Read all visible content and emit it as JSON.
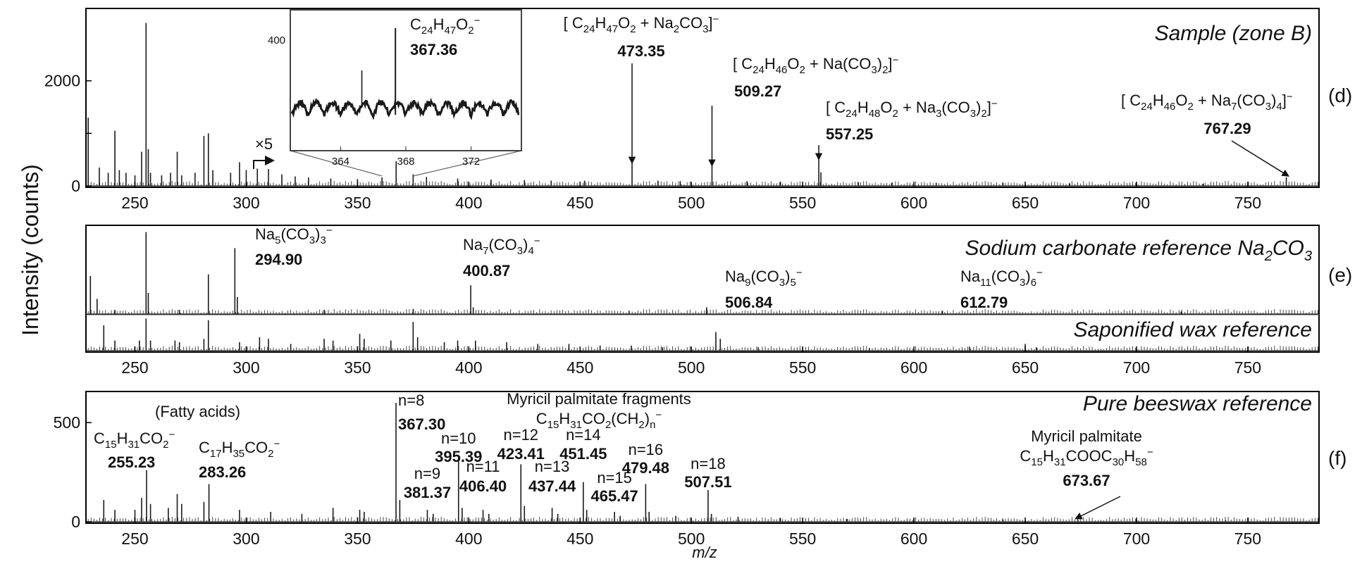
{
  "figure": {
    "ylabel": "Intensity (counts)",
    "xlabel": "m/z",
    "colors": {
      "spectrum": "#1a1a1a",
      "axis": "#000000",
      "inset_bg": "#ffffff"
    }
  },
  "chart_data": [
    {
      "id": "d",
      "type": "line",
      "panel_label": "(d)",
      "title": "Sample (zone B)",
      "xlim": [
        228,
        782
      ],
      "ylim": [
        0,
        3350
      ],
      "xticks": [
        250,
        300,
        350,
        400,
        450,
        500,
        550,
        600,
        650,
        700,
        750
      ],
      "yticks": [
        0,
        1000,
        2000
      ],
      "ytick_labels": [
        "0",
        "",
        "2000"
      ],
      "magnification_note": "×5",
      "magnification_from_x": 300,
      "peaks": [
        {
          "x": 229,
          "y": 1300
        },
        {
          "x": 234,
          "y": 350
        },
        {
          "x": 238,
          "y": 250
        },
        {
          "x": 241,
          "y": 1050
        },
        {
          "x": 243,
          "y": 300
        },
        {
          "x": 246,
          "y": 250
        },
        {
          "x": 250,
          "y": 200
        },
        {
          "x": 253,
          "y": 650
        },
        {
          "x": 255,
          "y": 3100
        },
        {
          "x": 256,
          "y": 700
        },
        {
          "x": 257,
          "y": 250
        },
        {
          "x": 262,
          "y": 200
        },
        {
          "x": 266,
          "y": 250
        },
        {
          "x": 269,
          "y": 650
        },
        {
          "x": 271,
          "y": 200
        },
        {
          "x": 277,
          "y": 250
        },
        {
          "x": 281,
          "y": 950
        },
        {
          "x": 283,
          "y": 1000
        },
        {
          "x": 285,
          "y": 300
        },
        {
          "x": 293,
          "y": 250
        },
        {
          "x": 297,
          "y": 450
        },
        {
          "x": 300,
          "y": 300
        },
        {
          "x": 305,
          "y": 330
        },
        {
          "x": 310,
          "y": 320
        },
        {
          "x": 316,
          "y": 220
        },
        {
          "x": 322,
          "y": 180
        },
        {
          "x": 328,
          "y": 160
        },
        {
          "x": 338,
          "y": 140
        },
        {
          "x": 350,
          "y": 130
        },
        {
          "x": 361,
          "y": 160
        },
        {
          "x": 367.36,
          "y": 470
        },
        {
          "x": 375,
          "y": 220
        },
        {
          "x": 381,
          "y": 170
        },
        {
          "x": 395,
          "y": 140
        },
        {
          "x": 410,
          "y": 120
        },
        {
          "x": 425,
          "y": 110
        },
        {
          "x": 437,
          "y": 100
        },
        {
          "x": 452,
          "y": 100
        },
        {
          "x": 473.35,
          "y": 430
        },
        {
          "x": 485,
          "y": 100
        },
        {
          "x": 495,
          "y": 90
        },
        {
          "x": 509.27,
          "y": 380
        },
        {
          "x": 525,
          "y": 90
        },
        {
          "x": 540,
          "y": 80
        },
        {
          "x": 557.25,
          "y": 500
        },
        {
          "x": 558.2,
          "y": 260
        },
        {
          "x": 575,
          "y": 70
        },
        {
          "x": 590,
          "y": 60
        },
        {
          "x": 610,
          "y": 60
        },
        {
          "x": 640,
          "y": 60
        },
        {
          "x": 670,
          "y": 50
        },
        {
          "x": 700,
          "y": 50
        },
        {
          "x": 730,
          "y": 45
        },
        {
          "x": 767.29,
          "y": 160
        }
      ],
      "annotations": [
        {
          "id": "ann-473",
          "formula": "[ C24H47O2 + Na2CO3 ]−",
          "value": "473.35",
          "x": 473.35
        },
        {
          "id": "ann-509",
          "formula": "[ C24H46O2 + Na(CO3)2 ]−",
          "value": "509.27",
          "x": 509.27
        },
        {
          "id": "ann-557",
          "formula": "[ C24H48O2 + Na3(CO3)2 ]−",
          "value": "557.25",
          "x": 557.25
        },
        {
          "id": "ann-767",
          "formula": "[ C24H46O2 + Na7(CO3)4 ]−",
          "value": "767.29",
          "x": 767.29
        }
      ],
      "inset": {
        "xlim": [
          361,
          375
        ],
        "xticks": [
          364,
          368,
          372
        ],
        "ytick": 400,
        "peak_formula": "C24H47O2−",
        "peak_value": "367.36",
        "peak_x": 367.36
      }
    },
    {
      "id": "e",
      "type": "line",
      "panel_label": "(e)",
      "title": "Sodium carbonate reference Na2CO3",
      "xlim": [
        228,
        782
      ],
      "peaks": [
        {
          "x": 230,
          "y": 0.45
        },
        {
          "x": 233,
          "y": 0.18
        },
        {
          "x": 241,
          "y": 0.05
        },
        {
          "x": 255,
          "y": 0.97
        },
        {
          "x": 256,
          "y": 0.25
        },
        {
          "x": 270,
          "y": 0.05
        },
        {
          "x": 283,
          "y": 0.47
        },
        {
          "x": 294.9,
          "y": 0.78
        },
        {
          "x": 296,
          "y": 0.2
        },
        {
          "x": 335,
          "y": 0.05
        },
        {
          "x": 375,
          "y": 0.06
        },
        {
          "x": 400.87,
          "y": 0.34
        },
        {
          "x": 402,
          "y": 0.08
        },
        {
          "x": 472,
          "y": 0.04
        },
        {
          "x": 506.84,
          "y": 0.08
        },
        {
          "x": 612.79,
          "y": 0.04
        },
        {
          "x": 720,
          "y": 0.03
        }
      ],
      "labels": [
        {
          "formula": "Na5(CO3)3−",
          "value": "294.90",
          "x": 294.9
        },
        {
          "formula": "Na7(CO3)4−",
          "value": "400.87",
          "x": 400.87
        },
        {
          "formula": "Na9(CO3)5−",
          "value": "506.84",
          "x": 506.84
        },
        {
          "formula": "Na11(CO3)6−",
          "value": "612.79",
          "x": 612.79
        }
      ]
    },
    {
      "id": "e2",
      "type": "line",
      "title": "Saponified wax reference",
      "xlim": [
        228,
        782
      ],
      "xticks": [
        250,
        300,
        350,
        400,
        450,
        500,
        550,
        600,
        650,
        700,
        750
      ],
      "peaks": [
        {
          "x": 236,
          "y": 0.75
        },
        {
          "x": 241,
          "y": 0.3
        },
        {
          "x": 252,
          "y": 0.3
        },
        {
          "x": 255,
          "y": 0.95
        },
        {
          "x": 257,
          "y": 0.3
        },
        {
          "x": 268,
          "y": 0.3
        },
        {
          "x": 270,
          "y": 0.25
        },
        {
          "x": 281,
          "y": 0.35
        },
        {
          "x": 283,
          "y": 0.9
        },
        {
          "x": 297,
          "y": 0.25
        },
        {
          "x": 306,
          "y": 0.4
        },
        {
          "x": 310,
          "y": 0.35
        },
        {
          "x": 320,
          "y": 0.2
        },
        {
          "x": 335,
          "y": 0.35
        },
        {
          "x": 339,
          "y": 0.3
        },
        {
          "x": 351,
          "y": 0.5
        },
        {
          "x": 353,
          "y": 0.35
        },
        {
          "x": 365,
          "y": 0.3
        },
        {
          "x": 375,
          "y": 0.85
        },
        {
          "x": 377,
          "y": 0.4
        },
        {
          "x": 389,
          "y": 0.25
        },
        {
          "x": 395,
          "y": 0.3
        },
        {
          "x": 403,
          "y": 0.3
        },
        {
          "x": 417,
          "y": 0.25
        },
        {
          "x": 431,
          "y": 0.2
        },
        {
          "x": 445,
          "y": 0.2
        },
        {
          "x": 459,
          "y": 0.15
        },
        {
          "x": 473,
          "y": 0.15
        },
        {
          "x": 487,
          "y": 0.1
        },
        {
          "x": 511,
          "y": 0.55
        },
        {
          "x": 513,
          "y": 0.35
        },
        {
          "x": 530,
          "y": 0.1
        },
        {
          "x": 550,
          "y": 0.08
        },
        {
          "x": 580,
          "y": 0.08
        },
        {
          "x": 625,
          "y": 0.12
        },
        {
          "x": 650,
          "y": 0.2
        },
        {
          "x": 655,
          "y": 0.1
        },
        {
          "x": 700,
          "y": 0.05
        }
      ]
    },
    {
      "id": "f",
      "type": "line",
      "panel_label": "(f)",
      "title": "Pure beeswax reference",
      "xlim": [
        228,
        782
      ],
      "ylim": [
        0,
        650
      ],
      "xticks": [
        250,
        300,
        350,
        400,
        450,
        500,
        550,
        600,
        650,
        700,
        750
      ],
      "yticks": [
        0,
        500
      ],
      "group_labels": [
        "(Fatty acids)",
        "Myricil palmitate fragments",
        "C15H31CO2(CH2)n−"
      ],
      "peaks": [
        {
          "x": 236,
          "y": 110
        },
        {
          "x": 241,
          "y": 60
        },
        {
          "x": 250,
          "y": 60
        },
        {
          "x": 253,
          "y": 120
        },
        {
          "x": 255.23,
          "y": 260
        },
        {
          "x": 257,
          "y": 90
        },
        {
          "x": 265,
          "y": 70
        },
        {
          "x": 269,
          "y": 140
        },
        {
          "x": 271,
          "y": 90
        },
        {
          "x": 281,
          "y": 100
        },
        {
          "x": 283.26,
          "y": 190
        },
        {
          "x": 297,
          "y": 60
        },
        {
          "x": 311,
          "y": 50
        },
        {
          "x": 325,
          "y": 40
        },
        {
          "x": 339,
          "y": 70
        },
        {
          "x": 351,
          "y": 60
        },
        {
          "x": 353,
          "y": 50
        },
        {
          "x": 367.3,
          "y": 600
        },
        {
          "x": 369,
          "y": 110
        },
        {
          "x": 381.37,
          "y": 60
        },
        {
          "x": 384,
          "y": 40
        },
        {
          "x": 395.39,
          "y": 310
        },
        {
          "x": 397,
          "y": 70
        },
        {
          "x": 406.4,
          "y": 60
        },
        {
          "x": 409,
          "y": 40
        },
        {
          "x": 423.41,
          "y": 290
        },
        {
          "x": 425,
          "y": 80
        },
        {
          "x": 437.44,
          "y": 70
        },
        {
          "x": 440,
          "y": 40
        },
        {
          "x": 451.45,
          "y": 200
        },
        {
          "x": 453,
          "y": 60
        },
        {
          "x": 465.47,
          "y": 50
        },
        {
          "x": 468,
          "y": 30
        },
        {
          "x": 479.48,
          "y": 190
        },
        {
          "x": 481,
          "y": 50
        },
        {
          "x": 493,
          "y": 30
        },
        {
          "x": 507.51,
          "y": 160
        },
        {
          "x": 509,
          "y": 40
        },
        {
          "x": 521,
          "y": 25
        },
        {
          "x": 540,
          "y": 20
        },
        {
          "x": 570,
          "y": 15
        },
        {
          "x": 600,
          "y": 15
        },
        {
          "x": 640,
          "y": 12
        },
        {
          "x": 673.67,
          "y": 10
        },
        {
          "x": 700,
          "y": 10
        },
        {
          "x": 740,
          "y": 8
        }
      ],
      "labels": [
        {
          "formula": "C15H31CO2−",
          "value": "255.23",
          "x": 255.23
        },
        {
          "formula": "C17H35CO2−",
          "value": "283.26",
          "x": 283.26
        },
        {
          "n": "n=8",
          "value": "367.30",
          "x": 367.3
        },
        {
          "n": "n=9",
          "value": "381.37",
          "x": 381.37
        },
        {
          "n": "n=10",
          "value": "395.39",
          "x": 395.39
        },
        {
          "n": "n=11",
          "value": "406.40",
          "x": 406.4
        },
        {
          "n": "n=12",
          "value": "423.41",
          "x": 423.41
        },
        {
          "n": "n=13",
          "value": "437.44",
          "x": 437.44
        },
        {
          "n": "n=14",
          "value": "451.45",
          "x": 451.45
        },
        {
          "n": "n=15",
          "value": "465.47",
          "x": 465.47
        },
        {
          "n": "n=16",
          "value": "479.48",
          "x": 479.48
        },
        {
          "n": "n=18",
          "value": "507.51",
          "x": 507.51
        }
      ],
      "myricil": {
        "name": "Myricil palmitate",
        "formula": "C15H31COOC30H58−",
        "value": "673.67",
        "x": 673.67
      }
    }
  ]
}
